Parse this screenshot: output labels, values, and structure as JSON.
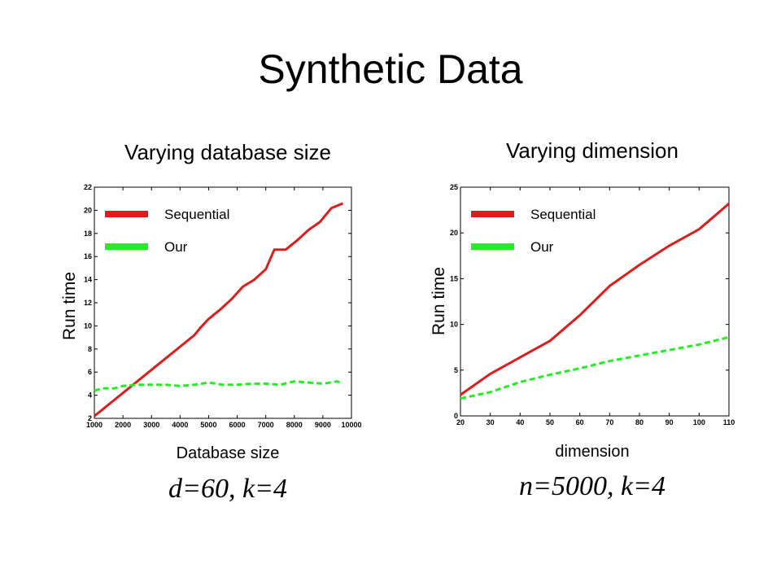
{
  "title": "Synthetic Data",
  "colors": {
    "sequential": "#dd1c1c",
    "our": "#22ee22",
    "axis": "#000000",
    "background": "#ffffff"
  },
  "panels": [
    {
      "title": "Varying database size",
      "ylabel": "Run time",
      "xlabel": "Database size",
      "params": "d=60, k=4"
    },
    {
      "title": "Varying dimension",
      "ylabel": "Run time",
      "xlabel": "dimension",
      "params": "n=5000, k=4"
    }
  ],
  "chart_data": [
    {
      "type": "line",
      "xlim": [
        1000,
        10000
      ],
      "ylim": [
        2,
        22
      ],
      "xticks": [
        1000,
        2000,
        3000,
        4000,
        5000,
        6000,
        7000,
        8000,
        9000,
        10000
      ],
      "yticks": [
        2,
        4,
        6,
        8,
        10,
        12,
        14,
        16,
        18,
        20,
        22
      ],
      "grid": false,
      "legend_position": "top-left",
      "series": [
        {
          "name": "Sequential",
          "style": "solid",
          "x": [
            1000,
            1500,
            2000,
            2500,
            3000,
            3500,
            4000,
            4500,
            4700,
            5000,
            5400,
            5800,
            6200,
            6600,
            7000,
            7300,
            7700,
            8100,
            8500,
            8900,
            9300,
            9700
          ],
          "y": [
            2.2,
            3.2,
            4.2,
            5.2,
            6.2,
            7.2,
            8.2,
            9.2,
            9.8,
            10.6,
            11.4,
            12.3,
            13.4,
            14.0,
            14.9,
            16.6,
            16.6,
            17.4,
            18.3,
            19.0,
            20.2,
            20.6
          ]
        },
        {
          "name": "Our",
          "style": "dashed",
          "x": [
            1000,
            1300,
            1700,
            2000,
            2500,
            3000,
            3500,
            4000,
            4500,
            5000,
            5500,
            6000,
            6500,
            7000,
            7500,
            8000,
            8500,
            9000,
            9500,
            9700
          ],
          "y": [
            4.4,
            4.6,
            4.6,
            4.8,
            4.9,
            4.9,
            4.9,
            4.8,
            4.9,
            5.1,
            4.9,
            4.9,
            5.0,
            5.0,
            4.9,
            5.2,
            5.1,
            5.0,
            5.2,
            5.0
          ]
        }
      ]
    },
    {
      "type": "line",
      "xlim": [
        20,
        110
      ],
      "ylim": [
        0,
        25
      ],
      "xticks": [
        20,
        30,
        40,
        50,
        60,
        70,
        80,
        90,
        100,
        110
      ],
      "yticks": [
        0,
        5,
        10,
        15,
        20,
        25
      ],
      "grid": false,
      "legend_position": "top-left",
      "series": [
        {
          "name": "Sequential",
          "style": "solid",
          "x": [
            20,
            30,
            40,
            50,
            60,
            70,
            80,
            90,
            100,
            110
          ],
          "y": [
            2.3,
            4.6,
            6.4,
            8.2,
            11.0,
            14.2,
            16.5,
            18.6,
            20.4,
            23.2
          ]
        },
        {
          "name": "Our",
          "style": "dashed",
          "x": [
            20,
            30,
            40,
            50,
            60,
            70,
            80,
            90,
            100,
            110
          ],
          "y": [
            1.9,
            2.6,
            3.7,
            4.5,
            5.2,
            6.0,
            6.6,
            7.2,
            7.8,
            8.6
          ]
        }
      ]
    }
  ]
}
